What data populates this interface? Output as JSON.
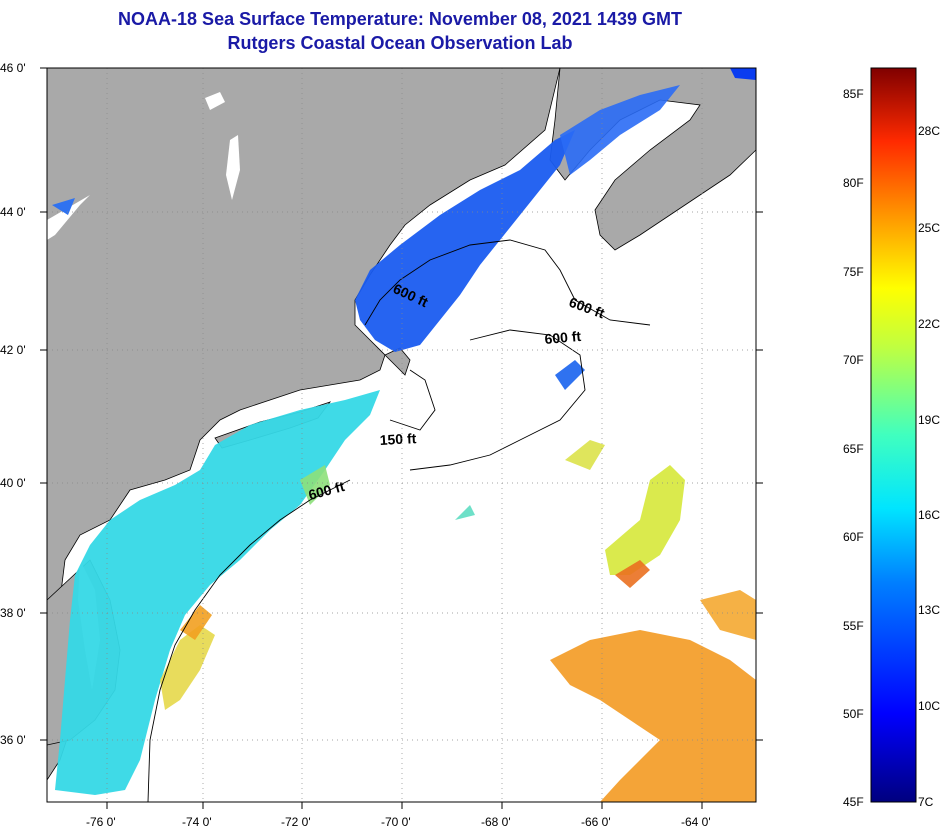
{
  "title": {
    "line1": "NOAA-18 Sea Surface Temperature:  November 08, 2021 1439 GMT",
    "line2": "Rutgers Coastal Ocean Observation Lab"
  },
  "map": {
    "lat_labels": [
      "46 0'",
      "44 0'",
      "42 0'",
      "40 0'",
      "38 0'",
      "36 0'"
    ],
    "lon_labels": [
      "-76 0'",
      "-74 0'",
      "-72 0'",
      "-70 0'",
      "-68 0'",
      "-66 0'",
      "-64 0'"
    ],
    "contours": [
      "600 ft",
      "600 ft",
      "600 ft",
      "150 ft",
      "600 ft"
    ]
  },
  "colorbar": {
    "f_labels": [
      "85F",
      "80F",
      "75F",
      "70F",
      "65F",
      "60F",
      "55F",
      "50F",
      "45F"
    ],
    "c_labels": [
      "28C",
      "25C",
      "22C",
      "19C",
      "16C",
      "13C",
      "10C",
      "7C"
    ]
  },
  "colors": {
    "land": "#a9a9a9",
    "coast": "#000000",
    "title": "#1a1aa6"
  }
}
